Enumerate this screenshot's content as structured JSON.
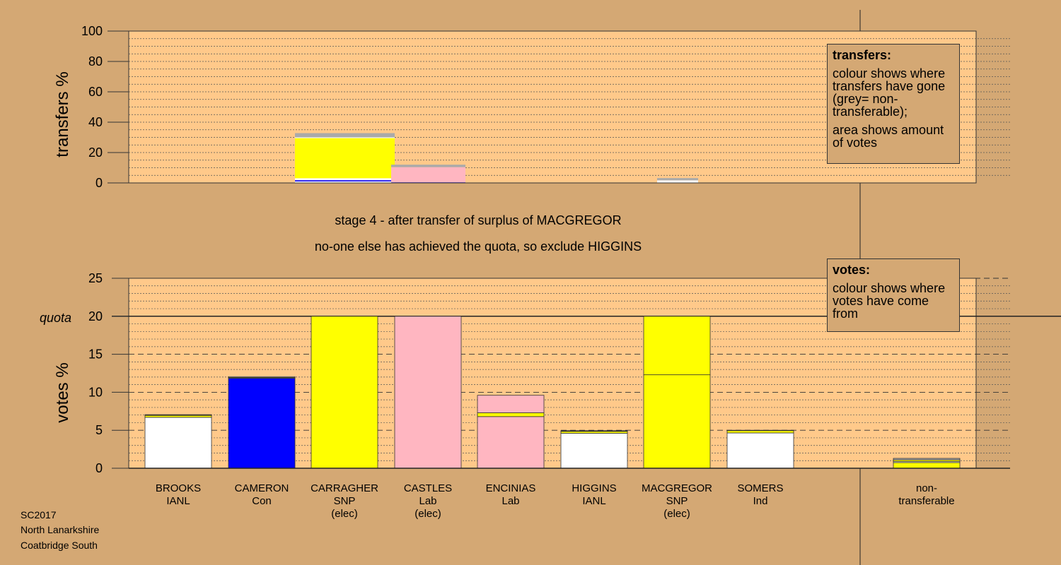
{
  "chart_data": [
    {
      "type": "bar",
      "stacked": true,
      "ylabel": "transfers %",
      "ylim": [
        0,
        100
      ],
      "yticks": [
        "0",
        "20",
        "40",
        "60",
        "80",
        "100"
      ],
      "categories": [
        "BROOKS",
        "CAMERON",
        "CARRAGHER",
        "CASTLES",
        "ENCINIAS",
        "HIGGINS",
        "MACGREGOR",
        "SOMERS"
      ],
      "transfer_bars": [
        {
          "from": "CARRAGHER",
          "segments": [
            {
              "color": "#ffffff",
              "value": 1.0
            },
            {
              "color": "#0000ff",
              "value": 0.8
            },
            {
              "color": "#ffffff",
              "value": 1.3
            },
            {
              "color": "#ffff00",
              "value": 26.4
            },
            {
              "color": "#ffffff",
              "value": 0.5
            },
            {
              "color": "#aaaaaa",
              "value": 2.8
            }
          ]
        },
        {
          "from": "CASTLES",
          "segments": [
            {
              "color": "#0000ff",
              "value": 0.4
            },
            {
              "color": "#ffb6c1",
              "value": 10.0
            },
            {
              "color": "#aaaaaa",
              "value": 1.6
            }
          ]
        },
        {
          "from": "MACGREGOR",
          "segments": [
            {
              "color": "#ffffff",
              "value": 0.9
            },
            {
              "color": "#ffffff",
              "value": 0.8
            },
            {
              "color": "#aaaaaa",
              "value": 1.5
            }
          ]
        }
      ],
      "legend": {
        "title": "transfers:",
        "lines": [
          "colour shows where transfers have gone (grey= non-transferable);",
          "area shows amount of votes"
        ]
      }
    },
    {
      "type": "bar",
      "stacked": true,
      "ylabel": "votes %",
      "ylim": [
        0,
        25
      ],
      "yticks": [
        "0",
        "5",
        "10",
        "15",
        "20",
        "25"
      ],
      "quota_label": "quota",
      "quota": 20,
      "candidates": [
        {
          "name": "BROOKS",
          "party": "IANL",
          "status": "",
          "segments": [
            {
              "color": "#ffffff",
              "value": 6.7
            },
            {
              "color": "#ffff00",
              "value": 0.25
            },
            {
              "color": "#0000ff",
              "value": 0.05
            },
            {
              "color": "#ffb6c1",
              "value": 0.05
            }
          ]
        },
        {
          "name": "CAMERON",
          "party": "Con",
          "status": "",
          "segments": [
            {
              "color": "#0000ff",
              "value": 11.85
            },
            {
              "color": "#ffff00",
              "value": 0.1
            },
            {
              "color": "#ffffff",
              "value": 0.1
            }
          ]
        },
        {
          "name": "CARRAGHER",
          "party": "SNP",
          "status": "(elec)",
          "segments": [
            {
              "color": "#ffff00",
              "value": 20.0
            }
          ]
        },
        {
          "name": "CASTLES",
          "party": "Lab",
          "status": "(elec)",
          "segments": [
            {
              "color": "#ffb6c1",
              "value": 20.0
            }
          ]
        },
        {
          "name": "ENCINIAS",
          "party": "Lab",
          "status": "",
          "segments": [
            {
              "color": "#ffb6c1",
              "value": 6.8
            },
            {
              "color": "#ffff00",
              "value": 0.5
            },
            {
              "color": "#ffb6c1",
              "value": 2.3
            }
          ]
        },
        {
          "name": "HIGGINS",
          "party": "IANL",
          "status": "",
          "segments": [
            {
              "color": "#ffffff",
              "value": 4.6
            },
            {
              "color": "#ffff00",
              "value": 0.25
            },
            {
              "color": "#0000ff",
              "value": 0.05
            },
            {
              "color": "#ffb6c1",
              "value": 0.05
            }
          ]
        },
        {
          "name": "MACGREGOR",
          "party": "SNP",
          "status": "(elec)",
          "segments": [
            {
              "color": "#ffff00",
              "value": 12.3
            },
            {
              "color": "#ffff00",
              "value": 7.7
            }
          ]
        },
        {
          "name": "SOMERS",
          "party": "Ind",
          "status": "",
          "segments": [
            {
              "color": "#ffffff",
              "value": 4.65
            },
            {
              "color": "#ffff00",
              "value": 0.3
            },
            {
              "color": "#0000ff",
              "value": 0.05
            }
          ]
        }
      ],
      "nontransferable": {
        "label": [
          "non-",
          "transferable"
        ],
        "segments": [
          {
            "color": "#ffff00",
            "value": 0.75
          },
          {
            "color": "#ffffff",
            "value": 0.15
          },
          {
            "color": "#ffff00",
            "value": 0.2
          },
          {
            "color": "#aaaaaa",
            "value": 0.2
          }
        ]
      },
      "legend": {
        "title": "votes:",
        "lines": [
          "colour shows where votes have come from"
        ]
      }
    }
  ],
  "message": {
    "line1": "stage 4 - after transfer of surplus of MACGREGOR",
    "line2": "no-one else has achieved the quota, so exclude HIGGINS"
  },
  "footer": {
    "election": "SC2017",
    "council": "North Lanarkshire",
    "ward": "Coatbridge South"
  },
  "colors": {
    "background": "#d4a874",
    "plot": "#ffc98a",
    "SNP": "#ffff00",
    "Lab": "#ffb6c1",
    "Con": "#0000ff",
    "Ind": "#ffffff",
    "IANL": "#ffffff",
    "nontransferable": "#aaaaaa"
  }
}
